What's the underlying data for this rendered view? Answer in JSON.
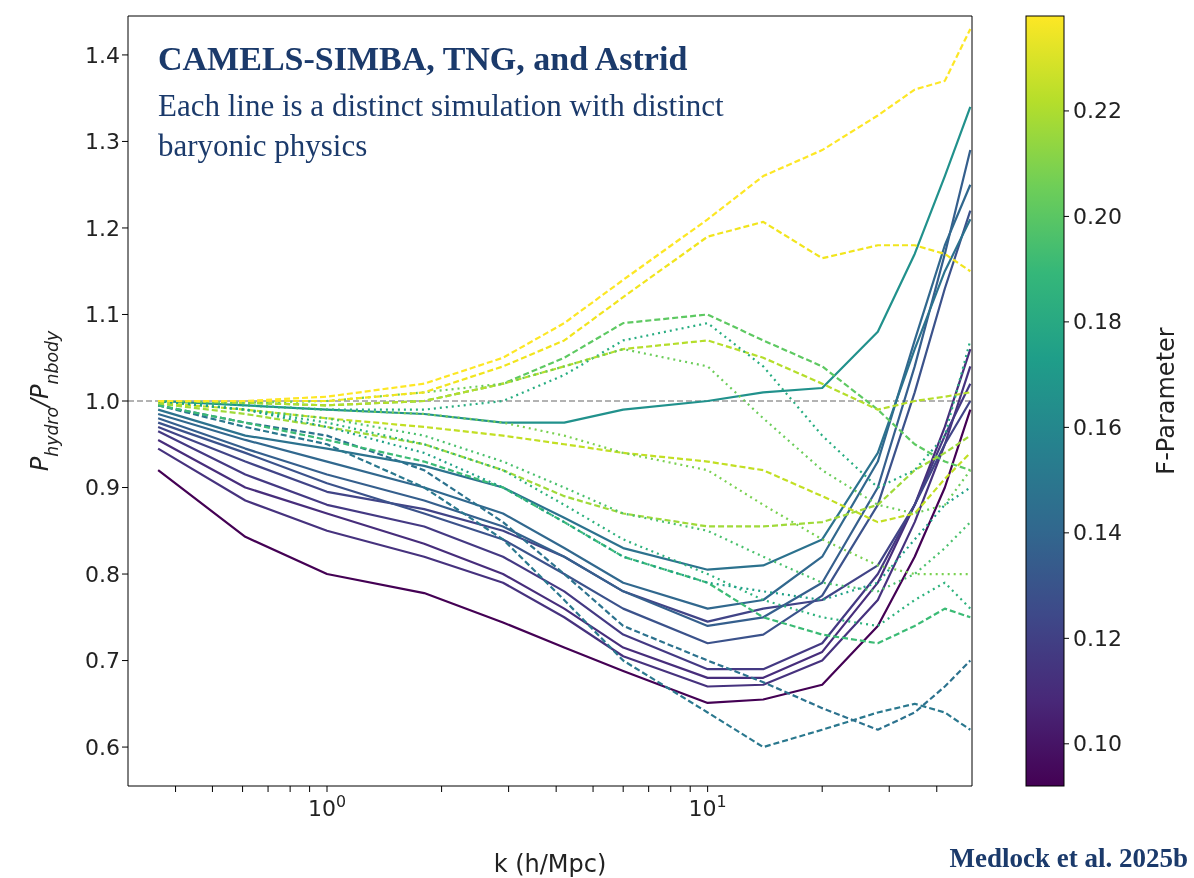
{
  "chart_data": {
    "type": "line",
    "title": "CAMELS-SIMBA, TNG, and Astrid",
    "subtitle": "Each line is a distinct simulation with distinct baryonic physics",
    "xlabel": "k (h/Mpc)",
    "ylabel": "P$_{hydro}$/P$_{nbody}$",
    "clabel": "F-Parameter",
    "annotations": [
      "Medlock et al. 2025b"
    ],
    "log": "x",
    "xlim": [
      0.3,
      49.5
    ],
    "xticks": [
      {
        "value": 0.4,
        "label": null
      },
      {
        "value": 0.5,
        "label": null
      },
      {
        "value": 0.6,
        "label": null
      },
      {
        "value": 0.7,
        "label": null
      },
      {
        "value": 0.8,
        "label": null
      },
      {
        "value": 0.9,
        "label": null
      },
      {
        "value": 1,
        "label": "10$^{0}$"
      },
      {
        "value": 2,
        "label": null
      },
      {
        "value": 3,
        "label": null
      },
      {
        "value": 4,
        "label": null
      },
      {
        "value": 5,
        "label": null
      },
      {
        "value": 6,
        "label": null
      },
      {
        "value": 7,
        "label": null
      },
      {
        "value": 8,
        "label": null
      },
      {
        "value": 9,
        "label": null
      },
      {
        "value": 10,
        "label": "10$^{1}$"
      },
      {
        "value": 20,
        "label": null
      },
      {
        "value": 30,
        "label": null
      },
      {
        "value": 40,
        "label": null
      }
    ],
    "ylim": [
      0.555,
      1.445
    ],
    "yticks": [
      0.6,
      0.7,
      0.8,
      0.9,
      {
        "value": 1,
        "label": "1.0"
      },
      1.1,
      1.2,
      1.3,
      1.4
    ],
    "clim": [
      0.092,
      0.238
    ],
    "cticks": [
      {
        "value": 0.1,
        "label": "0.10"
      },
      0.12,
      0.14,
      0.16,
      0.18,
      {
        "value": 0.2,
        "label": "0.20"
      },
      0.22
    ],
    "ref_lines": [
      {
        "axis": "y",
        "value": 1,
        "label": null,
        "color": "#666666",
        "line_style": "dashed"
      }
    ],
    "x": [
      0.36,
      0.61,
      1,
      1.8,
      2.9,
      4.2,
      6,
      10,
      14,
      20,
      28,
      35,
      42,
      49
    ],
    "series": [
      {
        "color": "#440154",
        "line_style": "solid",
        "values": [
          0.92,
          0.843,
          0.8,
          0.778,
          0.744,
          0.715,
          0.688,
          0.651,
          0.655,
          0.672,
          0.74,
          0.82,
          0.9,
          0.99
        ]
      },
      {
        "color": "#472d7b",
        "line_style": "solid",
        "values": [
          0.955,
          0.9,
          0.87,
          0.835,
          0.8,
          0.76,
          0.715,
          0.68,
          0.68,
          0.71,
          0.79,
          0.88,
          0.97,
          1.06
        ]
      },
      {
        "color": "#46327e",
        "line_style": "solid",
        "values": [
          0.945,
          0.885,
          0.85,
          0.82,
          0.79,
          0.75,
          0.705,
          0.67,
          0.672,
          0.7,
          0.77,
          0.86,
          0.95,
          1.04
        ]
      },
      {
        "color": "#443983",
        "line_style": "solid",
        "values": [
          0.965,
          0.915,
          0.88,
          0.855,
          0.82,
          0.78,
          0.73,
          0.69,
          0.69,
          0.72,
          0.8,
          0.88,
          0.96,
          1.02
        ]
      },
      {
        "color": "#414487",
        "line_style": "solid",
        "values": [
          0.97,
          0.93,
          0.895,
          0.875,
          0.85,
          0.82,
          0.78,
          0.745,
          0.76,
          0.77,
          0.81,
          0.88,
          0.95,
          1.0
        ]
      },
      {
        "color": "#3b528b",
        "line_style": "solid",
        "values": [
          0.975,
          0.94,
          0.905,
          0.87,
          0.84,
          0.8,
          0.76,
          0.72,
          0.73,
          0.775,
          0.88,
          1.01,
          1.13,
          1.22
        ]
      },
      {
        "color": "#355f8d",
        "line_style": "solid",
        "values": [
          0.98,
          0.945,
          0.915,
          0.885,
          0.855,
          0.82,
          0.78,
          0.74,
          0.75,
          0.79,
          0.9,
          1.04,
          1.17,
          1.29
        ]
      },
      {
        "color": "#31688e",
        "line_style": "solid",
        "values": [
          0.985,
          0.955,
          0.93,
          0.9,
          0.87,
          0.83,
          0.79,
          0.76,
          0.77,
          0.82,
          0.93,
          1.07,
          1.18,
          1.25
        ]
      },
      {
        "color": "#2c728e",
        "line_style": "solid",
        "values": [
          0.99,
          0.96,
          0.945,
          0.925,
          0.9,
          0.865,
          0.83,
          0.805,
          0.81,
          0.84,
          0.94,
          1.06,
          1.15,
          1.21
        ]
      },
      {
        "color": "#21918c",
        "line_style": "solid",
        "values": [
          1.0,
          0.995,
          0.99,
          0.985,
          0.975,
          0.975,
          0.99,
          1.0,
          1.01,
          1.015,
          1.08,
          1.17,
          1.26,
          1.34
        ]
      },
      {
        "color": "#2a788e",
        "line_style": "dashed",
        "values": [
          0.995,
          0.97,
          0.95,
          0.9,
          0.84,
          0.77,
          0.7,
          0.64,
          0.6,
          0.62,
          0.64,
          0.65,
          0.64,
          0.62
        ]
      },
      {
        "color": "#2c728e",
        "line_style": "dashed",
        "values": [
          0.995,
          0.975,
          0.96,
          0.92,
          0.86,
          0.8,
          0.74,
          0.7,
          0.675,
          0.645,
          0.62,
          0.64,
          0.67,
          0.7
        ]
      },
      {
        "color": "#5ec962",
        "line_style": "dashed",
        "values": [
          1.0,
          0.998,
          0.995,
          1.0,
          1.02,
          1.05,
          1.09,
          1.1,
          1.07,
          1.04,
          0.99,
          0.95,
          0.93,
          0.92
        ]
      },
      {
        "color": "#b5de2b",
        "line_style": "dashed",
        "values": [
          1.0,
          0.998,
          0.995,
          1.0,
          1.02,
          1.04,
          1.06,
          1.07,
          1.05,
          1.02,
          0.99,
          1.0,
          1.005,
          1.01
        ]
      },
      {
        "color": "#c2df23",
        "line_style": "dashed",
        "values": [
          0.998,
          0.99,
          0.98,
          0.97,
          0.96,
          0.95,
          0.94,
          0.93,
          0.92,
          0.89,
          0.86,
          0.87,
          0.91,
          0.94
        ]
      },
      {
        "color": "#a0da39",
        "line_style": "dashed",
        "values": [
          0.997,
          0.985,
          0.97,
          0.95,
          0.92,
          0.89,
          0.87,
          0.855,
          0.855,
          0.86,
          0.88,
          0.92,
          0.94,
          0.96
        ]
      },
      {
        "color": "#3bbb75",
        "line_style": "dashed",
        "values": [
          0.995,
          0.975,
          0.955,
          0.93,
          0.9,
          0.86,
          0.82,
          0.79,
          0.75,
          0.73,
          0.72,
          0.74,
          0.76,
          0.75
        ]
      },
      {
        "color": "#7ad151",
        "line_style": "dotted",
        "values": [
          1.0,
          0.995,
          0.99,
          0.985,
          0.975,
          0.96,
          0.94,
          0.92,
          0.88,
          0.84,
          0.81,
          0.8,
          0.8,
          0.8
        ]
      },
      {
        "color": "#4ac16d",
        "line_style": "dotted",
        "values": [
          1.0,
          0.99,
          0.98,
          0.96,
          0.93,
          0.9,
          0.87,
          0.85,
          0.82,
          0.79,
          0.78,
          0.8,
          0.83,
          0.86
        ]
      },
      {
        "color": "#2db27d",
        "line_style": "dotted",
        "values": [
          1.0,
          0.99,
          0.975,
          0.95,
          0.92,
          0.88,
          0.84,
          0.8,
          0.77,
          0.75,
          0.74,
          0.77,
          0.79,
          0.76
        ]
      },
      {
        "color": "#27ad81",
        "line_style": "dotted",
        "values": [
          1.0,
          0.995,
          0.99,
          0.99,
          1.0,
          1.03,
          1.07,
          1.09,
          1.04,
          0.96,
          0.9,
          0.92,
          0.96,
          1.07
        ]
      },
      {
        "color": "#6ccd5a",
        "line_style": "dotted",
        "values": [
          1.0,
          0.998,
          1.0,
          1.01,
          1.02,
          1.04,
          1.06,
          1.04,
          0.98,
          0.92,
          0.88,
          0.87,
          0.88,
          0.92
        ]
      },
      {
        "color": "#1fa187",
        "line_style": "dotted",
        "values": [
          1.0,
          0.99,
          0.97,
          0.94,
          0.9,
          0.86,
          0.82,
          0.79,
          0.78,
          0.77,
          0.79,
          0.84,
          0.88,
          0.9
        ]
      },
      {
        "color": "#f1e51d",
        "line_style": "dashed",
        "values": [
          1.0,
          1.0,
          1.0,
          1.01,
          1.04,
          1.07,
          1.12,
          1.19,
          1.207,
          1.165,
          1.18,
          1.18,
          1.17,
          1.15
        ]
      },
      {
        "color": "#fde725",
        "line_style": "dashed",
        "values": [
          1.0,
          1.0,
          1.005,
          1.02,
          1.05,
          1.09,
          1.14,
          1.21,
          1.26,
          1.29,
          1.33,
          1.36,
          1.37,
          1.43
        ]
      }
    ]
  }
}
